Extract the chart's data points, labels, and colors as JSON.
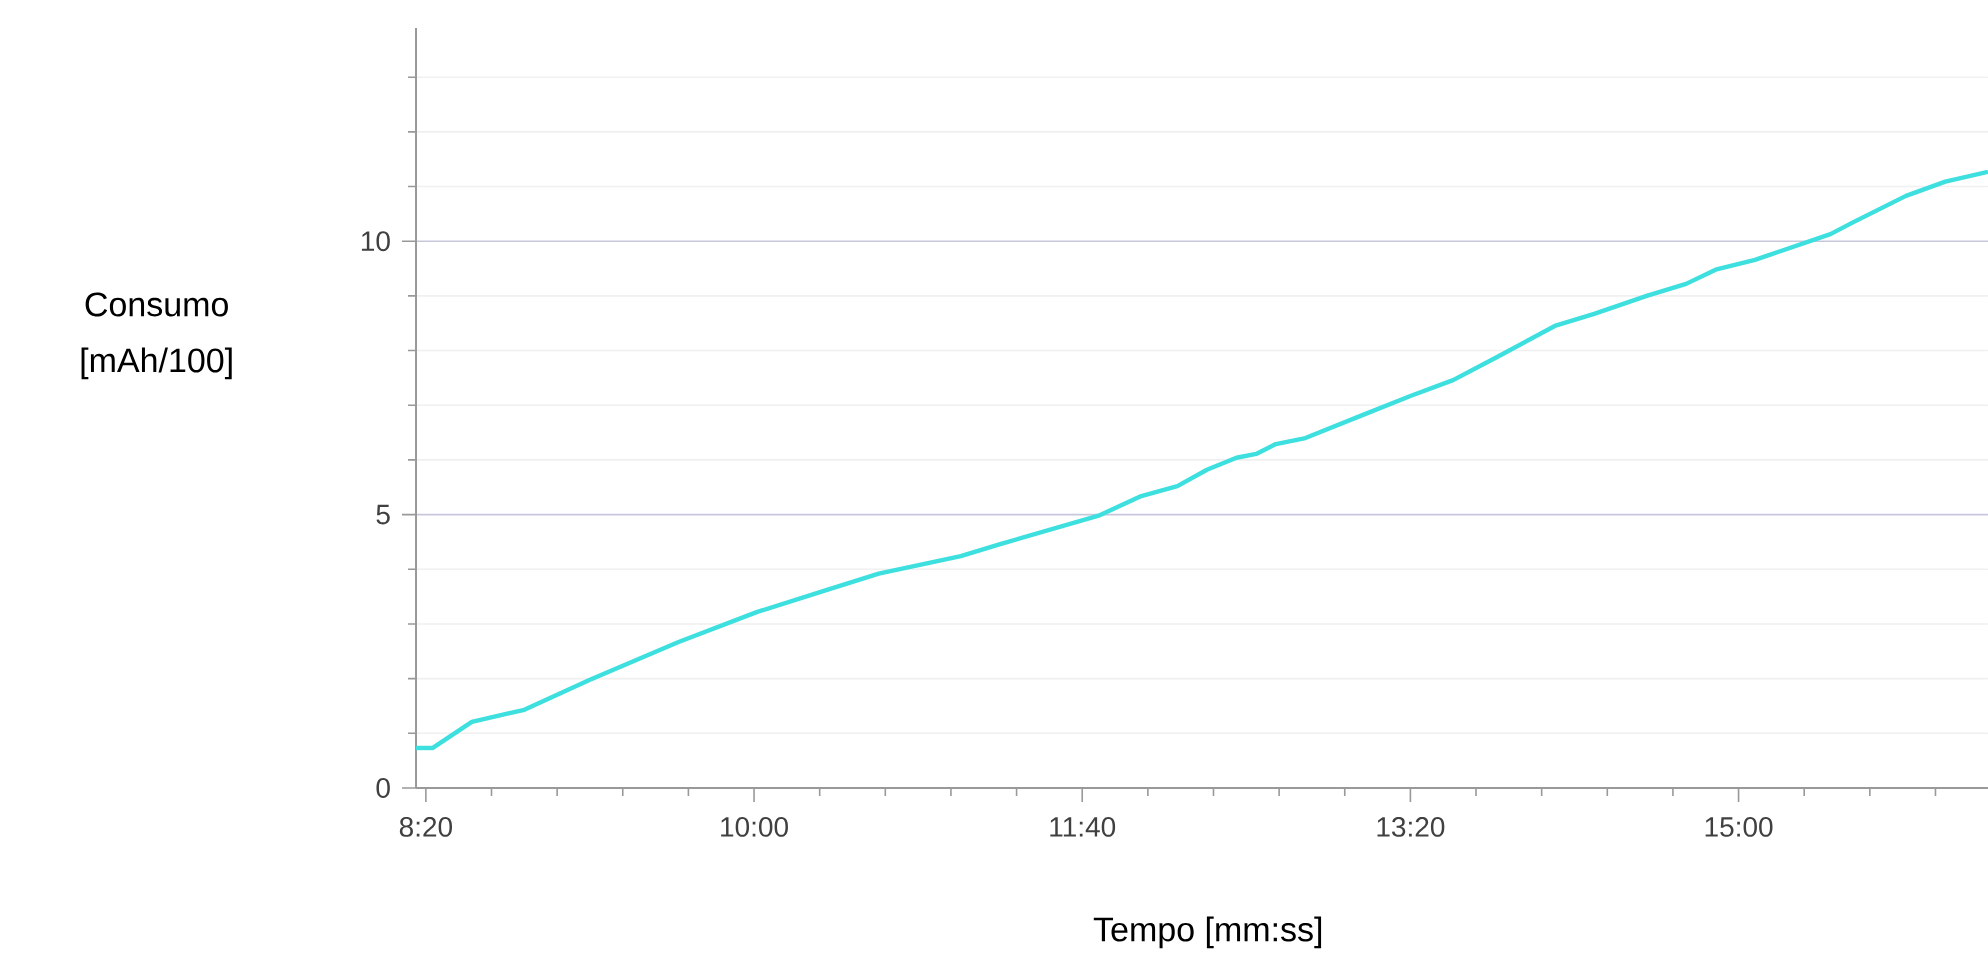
{
  "chart_data": {
    "type": "line",
    "xlabel": "Tempo [mm:ss]",
    "ylabel": "Consumo [mAh/100]",
    "x": [
      497,
      502,
      514,
      530,
      550,
      577,
      601,
      622,
      638,
      663,
      675,
      705,
      718,
      729,
      738,
      747,
      753,
      759,
      768,
      785,
      800,
      813,
      826,
      844,
      856,
      872,
      884,
      893,
      905,
      928,
      935,
      951,
      963,
      976
    ],
    "series": [
      {
        "color": "#3ddfdf",
        "values": [
          0.73,
          0.73,
          1.21,
          1.43,
          1.98,
          2.67,
          3.22,
          3.62,
          3.92,
          4.24,
          4.46,
          4.98,
          5.34,
          5.52,
          5.82,
          6.04,
          6.11,
          6.29,
          6.4,
          6.81,
          7.17,
          7.46,
          7.87,
          8.45,
          8.67,
          9.0,
          9.22,
          9.48,
          9.66,
          10.13,
          10.35,
          10.83,
          11.09,
          11.27
        ]
      }
    ],
    "xlim": [
      497,
      976
    ],
    "ylim": [
      0,
      13.9
    ],
    "xticks": [
      {
        "value": 500,
        "label": "8:20"
      },
      {
        "value": 520,
        "label": null
      },
      {
        "value": 540,
        "label": null
      },
      {
        "value": 560,
        "label": null
      },
      {
        "value": 580,
        "label": null
      },
      {
        "value": 600,
        "label": "10:00"
      },
      {
        "value": 620,
        "label": null
      },
      {
        "value": 640,
        "label": null
      },
      {
        "value": 660,
        "label": null
      },
      {
        "value": 680,
        "label": null
      },
      {
        "value": 700,
        "label": "11:40"
      },
      {
        "value": 720,
        "label": null
      },
      {
        "value": 740,
        "label": null
      },
      {
        "value": 760,
        "label": null
      },
      {
        "value": 780,
        "label": null
      },
      {
        "value": 800,
        "label": "13:20"
      },
      {
        "value": 820,
        "label": null
      },
      {
        "value": 840,
        "label": null
      },
      {
        "value": 860,
        "label": null
      },
      {
        "value": 880,
        "label": null
      },
      {
        "value": 900,
        "label": "15:00"
      },
      {
        "value": 920,
        "label": null
      },
      {
        "value": 940,
        "label": null
      },
      {
        "value": 960,
        "label": null
      }
    ],
    "yticks": [
      0,
      {
        "value": 1,
        "label": null
      },
      {
        "value": 2,
        "label": null
      },
      {
        "value": 3,
        "label": null
      },
      {
        "value": 4,
        "label": null
      },
      5,
      {
        "value": 6,
        "label": null
      },
      {
        "value": 7,
        "label": null
      },
      {
        "value": 8,
        "label": null
      },
      {
        "value": 9,
        "label": null
      },
      10,
      {
        "value": 11,
        "label": null
      },
      {
        "value": 12,
        "label": null
      },
      {
        "value": 13,
        "label": null
      }
    ],
    "grid": "y",
    "marker": "none",
    "line_style": "solid"
  }
}
